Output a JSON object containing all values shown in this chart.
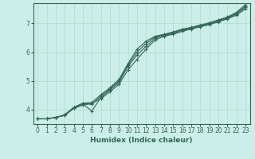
{
  "xlabel": "Humidex (Indice chaleur)",
  "ylabel": "",
  "bg_color": "#cceee8",
  "grid_color": "#aaddcc",
  "line_color": "#336655",
  "xlim": [
    -0.5,
    23.5
  ],
  "ylim": [
    3.5,
    7.7
  ],
  "yticks": [
    4,
    5,
    6,
    7
  ],
  "xticks": [
    0,
    1,
    2,
    3,
    4,
    5,
    6,
    7,
    8,
    9,
    10,
    11,
    12,
    13,
    14,
    15,
    16,
    17,
    18,
    19,
    20,
    21,
    22,
    23
  ],
  "line1_x": [
    0,
    1,
    2,
    3,
    4,
    5,
    6,
    7,
    8,
    9,
    10,
    11,
    12,
    13,
    14,
    15,
    16,
    17,
    18,
    19,
    20,
    21,
    22,
    23
  ],
  "line1_y": [
    3.68,
    3.68,
    3.73,
    3.8,
    4.05,
    4.15,
    4.22,
    4.38,
    4.62,
    4.88,
    5.38,
    5.75,
    6.1,
    6.42,
    6.55,
    6.62,
    6.72,
    6.8,
    6.88,
    6.95,
    7.05,
    7.15,
    7.28,
    7.5
  ],
  "line2_x": [
    0,
    1,
    2,
    3,
    4,
    5,
    6,
    7,
    8,
    9,
    10,
    11,
    12,
    13,
    14,
    15,
    16,
    17,
    18,
    19,
    20,
    21,
    22,
    23
  ],
  "line2_y": [
    3.68,
    3.68,
    3.73,
    3.8,
    4.05,
    4.2,
    3.95,
    4.42,
    4.68,
    4.95,
    5.5,
    5.9,
    6.2,
    6.48,
    6.58,
    6.65,
    6.75,
    6.82,
    6.9,
    6.97,
    7.07,
    7.18,
    7.32,
    7.55
  ],
  "line3_x": [
    0,
    1,
    2,
    3,
    4,
    5,
    6,
    7,
    8,
    9,
    10,
    11,
    12,
    13,
    14,
    15,
    16,
    17,
    18,
    19,
    20,
    21,
    22,
    23
  ],
  "line3_y": [
    3.68,
    3.68,
    3.73,
    3.82,
    4.08,
    4.22,
    4.18,
    4.48,
    4.72,
    5.0,
    5.55,
    6.0,
    6.3,
    6.52,
    6.6,
    6.68,
    6.78,
    6.84,
    6.92,
    7.0,
    7.1,
    7.2,
    7.35,
    7.6
  ],
  "line4_x": [
    0,
    1,
    2,
    3,
    4,
    5,
    6,
    7,
    8,
    9,
    10,
    11,
    12,
    13,
    14,
    15,
    16,
    17,
    18,
    19,
    20,
    21,
    22,
    23
  ],
  "line4_y": [
    3.68,
    3.68,
    3.73,
    3.82,
    4.08,
    4.22,
    4.25,
    4.52,
    4.76,
    5.05,
    5.6,
    6.1,
    6.38,
    6.55,
    6.62,
    6.7,
    6.8,
    6.86,
    6.94,
    7.02,
    7.12,
    7.22,
    7.38,
    7.65
  ]
}
